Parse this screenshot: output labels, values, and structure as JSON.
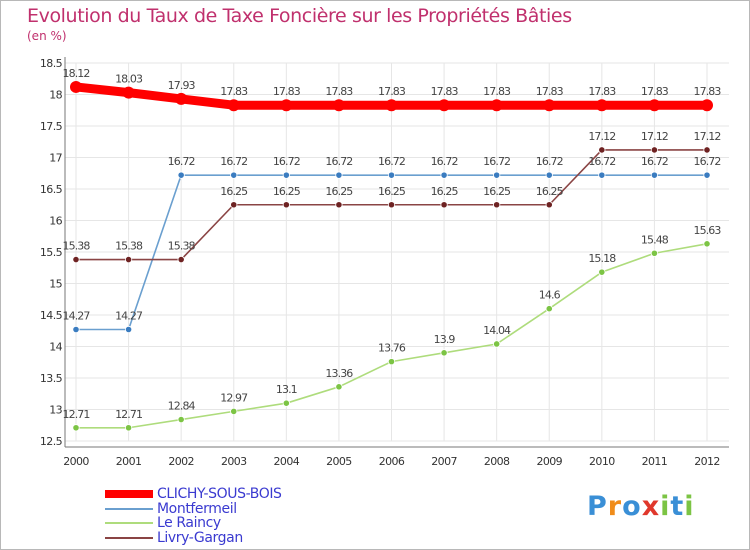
{
  "chart_data": {
    "type": "line",
    "title": "Evolution du Taux de Taxe Foncière sur les Propriétés Bâties",
    "ylabel": "(en %)",
    "x": [
      "2000",
      "2001",
      "2002",
      "2003",
      "2004",
      "2005",
      "2006",
      "2007",
      "2008",
      "2009",
      "2010",
      "2011",
      "2012"
    ],
    "ylim": [
      12.5,
      18.5
    ],
    "yticks": [
      "12.5",
      "13",
      "13.5",
      "14",
      "14.5",
      "15",
      "15.5",
      "16",
      "16.5",
      "17",
      "17.5",
      "18",
      "18.5"
    ],
    "grid": true,
    "legend_position": "bottom-left",
    "series": [
      {
        "name": "CLICHY-SOUS-BOIS",
        "color": "#ff0000",
        "point_color": "#ff0000",
        "values": [
          18.12,
          18.03,
          17.93,
          17.83,
          17.83,
          17.83,
          17.83,
          17.83,
          17.83,
          17.83,
          17.83,
          17.83,
          17.83
        ],
        "labels": [
          "18.12",
          "18.03",
          "17.93",
          "17.83",
          "17.83",
          "17.83",
          "17.83",
          "17.83",
          "17.83",
          "17.83",
          "17.83",
          "17.83",
          "17.83"
        ]
      },
      {
        "name": "Montfermeil",
        "color": "#6a9fcf",
        "point_color": "#3a7cc0",
        "values": [
          14.27,
          14.27,
          16.72,
          16.72,
          16.72,
          16.72,
          16.72,
          16.72,
          16.72,
          16.72,
          16.72,
          16.72,
          16.72
        ],
        "labels": [
          "14.27",
          "14.27",
          "16.72",
          "16.72",
          "16.72",
          "16.72",
          "16.72",
          "16.72",
          "16.72",
          "16.72",
          "16.72",
          "16.72",
          "16.72"
        ]
      },
      {
        "name": "Le Raincy",
        "color": "#aedc7c",
        "point_color": "#7cc444",
        "values": [
          12.71,
          12.71,
          12.84,
          12.97,
          13.1,
          13.36,
          13.76,
          13.9,
          14.04,
          14.6,
          15.18,
          15.48,
          15.63
        ],
        "labels": [
          "12.71",
          "12.71",
          "12.84",
          "12.97",
          "13.1",
          "13.36",
          "13.76",
          "13.9",
          "14.04",
          "14.6",
          "15.18",
          "15.48",
          "15.63"
        ]
      },
      {
        "name": "Livry-Gargan",
        "color": "#8a4444",
        "point_color": "#6e2222",
        "values": [
          15.38,
          15.38,
          15.38,
          16.25,
          16.25,
          16.25,
          16.25,
          16.25,
          16.25,
          16.25,
          17.12,
          17.12,
          17.12
        ],
        "labels": [
          "15.38",
          "15.38",
          "15.38",
          "16.25",
          "16.25",
          "16.25",
          "16.25",
          "16.25",
          "16.25",
          "16.25",
          "17.12",
          "17.12",
          "17.12"
        ]
      }
    ]
  },
  "brand": {
    "name": "Proxiti",
    "letters": [
      {
        "char": "P",
        "color": "#3a8fd6"
      },
      {
        "char": "r",
        "color": "#f08c1a"
      },
      {
        "char": "o",
        "color": "#3a8fd6"
      },
      {
        "char": "x",
        "color": "#e0382c"
      },
      {
        "char": "i",
        "color": "#7cc444"
      },
      {
        "char": "t",
        "color": "#3a8fd6"
      },
      {
        "char": "i",
        "color": "#7cc444"
      }
    ]
  }
}
